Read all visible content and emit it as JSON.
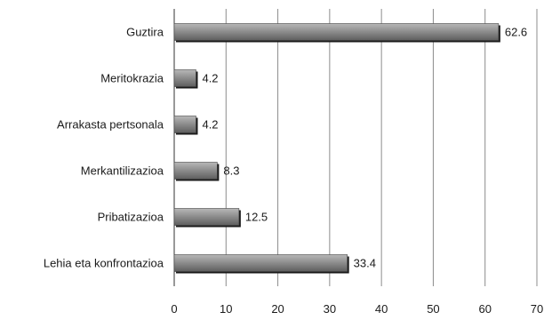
{
  "chart_data": {
    "type": "bar",
    "orientation": "horizontal",
    "categories": [
      "Guztira",
      "Meritokrazia",
      "Arrakasta pertsonala",
      "Merkantilizazioa",
      "Pribatizazioa",
      "Lehia eta konfrontazioa"
    ],
    "values": [
      62.6,
      4.2,
      4.2,
      8.3,
      12.5,
      33.4
    ],
    "value_labels": [
      "62.6",
      "4.2",
      "4.2",
      "8.3",
      "12.5",
      "33.4"
    ],
    "xlim": [
      0,
      70
    ],
    "x_ticks": [
      "0",
      "10",
      "20",
      "30",
      "40",
      "50",
      "60",
      "70"
    ],
    "grid": "vertical",
    "legend": "none",
    "colors": {
      "bar_fill_top": "#b8b8b8",
      "bar_fill_bottom": "#5e5e5e",
      "bar_edge": "#1a1a1a",
      "grid": "#8c8c8c",
      "axis": "#333333"
    }
  }
}
